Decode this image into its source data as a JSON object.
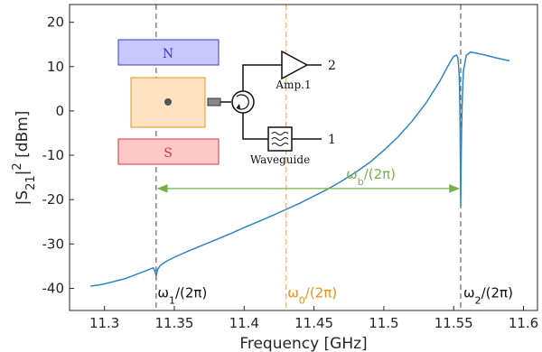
{
  "chart_data": {
    "type": "line",
    "xlabel": "Frequency [GHz]",
    "ylabel": "|S21|2 [dBm]",
    "xlim": [
      11.275,
      11.61
    ],
    "ylim": [
      -45,
      24
    ],
    "xticks": [
      11.3,
      11.35,
      11.4,
      11.45,
      11.5,
      11.55,
      11.6
    ],
    "yticks": [
      -40,
      -30,
      -20,
      -10,
      0,
      10,
      20
    ],
    "grid": false,
    "series": [
      {
        "color": "#2e86c1",
        "x": [
          11.29,
          11.295,
          11.3,
          11.305,
          11.31,
          11.315,
          11.32,
          11.325,
          11.33,
          11.333,
          11.335,
          11.336,
          11.337,
          11.338,
          11.34,
          11.345,
          11.35,
          11.36,
          11.37,
          11.38,
          11.39,
          11.4,
          11.41,
          11.42,
          11.43,
          11.44,
          11.45,
          11.46,
          11.47,
          11.48,
          11.49,
          11.5,
          11.51,
          11.52,
          11.53,
          11.54,
          11.545,
          11.548,
          11.55,
          11.552,
          11.553,
          11.554,
          11.5545,
          11.555,
          11.5555,
          11.556,
          11.557,
          11.559,
          11.562,
          11.565,
          11.57,
          11.58,
          11.59
        ],
        "y": [
          -39.5,
          -39.3,
          -39.0,
          -38.6,
          -38.2,
          -37.8,
          -37.2,
          -36.6,
          -36.0,
          -35.6,
          -35.4,
          -36.0,
          -37.2,
          -35.8,
          -34.8,
          -33.8,
          -33.0,
          -31.6,
          -30.3,
          -29.0,
          -27.7,
          -26.3,
          -25.0,
          -23.6,
          -22.2,
          -20.8,
          -19.2,
          -17.6,
          -15.8,
          -13.8,
          -11.6,
          -8.9,
          -5.9,
          -2.4,
          1.7,
          6.7,
          9.6,
          11.3,
          12.3,
          12.6,
          12.0,
          8.0,
          0.0,
          -21.5,
          -8.0,
          1.0,
          9.0,
          12.5,
          13.3,
          13.1,
          12.8,
          12.0,
          11.3
        ]
      }
    ],
    "vlines": [
      {
        "x": 11.337,
        "color": "#555555"
      },
      {
        "x": 11.43,
        "color": "#f0a96a"
      },
      {
        "x": 11.555,
        "color": "#555555"
      }
    ],
    "annotations": {
      "omega1": {
        "x": 11.338,
        "y": -42,
        "text": "ω1/(2π)",
        "color": "#111111"
      },
      "omega0": {
        "x": 11.431,
        "y": -42,
        "text": "ω0/(2π)",
        "color": "#e8911a"
      },
      "omega2": {
        "x": 11.557,
        "y": -42,
        "text": "ω2/(2π)",
        "color": "#111111"
      },
      "omegab": {
        "x": 11.473,
        "y": -15.3,
        "text": "ωb/(2π)",
        "color": "#77b146"
      },
      "arrow": {
        "x1": 11.337,
        "x2": 11.555,
        "y": -17.5,
        "color": "#77b146"
      }
    },
    "inset": {
      "north_label": "N",
      "south_label": "S",
      "amp_label": "Amp.1",
      "waveguide_label": "Waveguide",
      "port2_label": "2",
      "port1_label": "1",
      "north_color": "#c8c8ff",
      "south_color": "#ffc8c8",
      "cavity_color": "#fde3c4"
    }
  }
}
